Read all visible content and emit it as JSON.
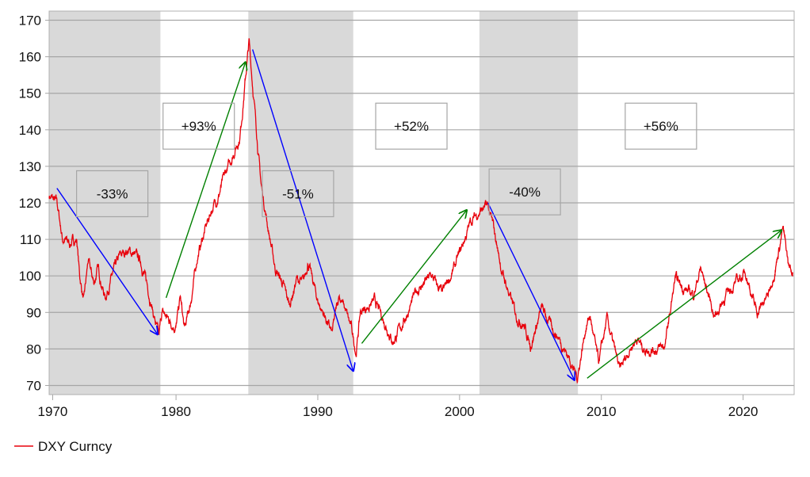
{
  "chart_data": {
    "type": "line",
    "title": "",
    "xlabel": "",
    "ylabel": "",
    "xlim": [
      1971.05,
      2023.6
    ],
    "ylim": [
      67.5,
      172.5
    ],
    "x_ticks": [
      {
        "label": "1970",
        "value": 1971.3
      },
      {
        "label": "1980",
        "value": 1980
      },
      {
        "label": "1990",
        "value": 1990
      },
      {
        "label": "2000",
        "value": 2000
      },
      {
        "label": "2010",
        "value": 2010
      },
      {
        "label": "2020",
        "value": 2020
      }
    ],
    "y_ticks": [
      70,
      80,
      90,
      100,
      110,
      120,
      130,
      140,
      150,
      160,
      170
    ],
    "grid": true,
    "legend": {
      "position": "bottom-left",
      "entries": [
        {
          "label": "DXY Curncy",
          "color": "#e8000b"
        }
      ]
    },
    "shaded_periods": [
      [
        1971.05,
        1978.9
      ],
      [
        1985.1,
        1992.5
      ],
      [
        2001.4,
        2008.35
      ]
    ],
    "series": [
      {
        "name": "DXY Curncy",
        "color": "#e8000b",
        "points": [
          [
            1971.05,
            122
          ],
          [
            1971.3,
            121
          ],
          [
            1971.6,
            120
          ],
          [
            1972,
            110
          ],
          [
            1972.5,
            109
          ],
          [
            1973.0,
            110
          ],
          [
            1973.2,
            100
          ],
          [
            1973.5,
            93
          ],
          [
            1973.8,
            104
          ],
          [
            1974.2,
            98
          ],
          [
            1974.5,
            102
          ],
          [
            1975.0,
            94
          ],
          [
            1975.5,
            100
          ],
          [
            1976,
            105
          ],
          [
            1976.5,
            107
          ],
          [
            1977,
            106
          ],
          [
            1977.5,
            104
          ],
          [
            1978.0,
            97
          ],
          [
            1978.5,
            88
          ],
          [
            1978.8,
            83
          ],
          [
            1979,
            90
          ],
          [
            1979.5,
            88
          ],
          [
            1980,
            86
          ],
          [
            1980.3,
            94
          ],
          [
            1980.6,
            85
          ],
          [
            1981,
            92
          ],
          [
            1981.5,
            105
          ],
          [
            1982,
            112
          ],
          [
            1982.5,
            118
          ],
          [
            1983,
            122
          ],
          [
            1983.5,
            128
          ],
          [
            1984,
            133
          ],
          [
            1984.5,
            138
          ],
          [
            1985.0,
            158
          ],
          [
            1985.15,
            164
          ],
          [
            1985.5,
            148
          ],
          [
            1986,
            125
          ],
          [
            1986.5,
            113
          ],
          [
            1987,
            102
          ],
          [
            1987.5,
            98
          ],
          [
            1988,
            92
          ],
          [
            1988.5,
            99
          ],
          [
            1989,
            98
          ],
          [
            1989.3,
            104
          ],
          [
            1990,
            93
          ],
          [
            1990.5,
            89
          ],
          [
            1991,
            84
          ],
          [
            1991.5,
            95
          ],
          [
            1992,
            90
          ],
          [
            1992.4,
            85
          ],
          [
            1992.7,
            79
          ],
          [
            1993,
            90
          ],
          [
            1994,
            93
          ],
          [
            1994.5,
            89
          ],
          [
            1995,
            85
          ],
          [
            1995.3,
            82
          ],
          [
            1996,
            87
          ],
          [
            1997,
            96
          ],
          [
            1998,
            100
          ],
          [
            1998.8,
            95
          ],
          [
            1999.5,
            101
          ],
          [
            2000,
            106
          ],
          [
            2000.8,
            115
          ],
          [
            2001.5,
            118
          ],
          [
            2002,
            119
          ],
          [
            2002.4,
            113
          ],
          [
            2003,
            101
          ],
          [
            2004,
            89
          ],
          [
            2004.5,
            87
          ],
          [
            2005,
            81
          ],
          [
            2005.8,
            91
          ],
          [
            2006.5,
            86
          ],
          [
            2007,
            83
          ],
          [
            2007.8,
            77
          ],
          [
            2008.3,
            72
          ],
          [
            2008.9,
            86
          ],
          [
            2009.2,
            89
          ],
          [
            2009.8,
            76
          ],
          [
            2010.4,
            88
          ],
          [
            2011.3,
            74
          ],
          [
            2012,
            80
          ],
          [
            2012.5,
            83
          ],
          [
            2013,
            80
          ],
          [
            2014,
            80
          ],
          [
            2014.5,
            81
          ],
          [
            2015.2,
            99
          ],
          [
            2016,
            96
          ],
          [
            2016.5,
            95
          ],
          [
            2017,
            102
          ],
          [
            2018,
            89
          ],
          [
            2019,
            96
          ],
          [
            2020.2,
            101
          ],
          [
            2020.8,
            92
          ],
          [
            2021,
            90
          ],
          [
            2021.8,
            95
          ],
          [
            2022.3,
            103
          ],
          [
            2022.8,
            113
          ],
          [
            2023.2,
            103
          ],
          [
            2023.5,
            101
          ]
        ]
      }
    ],
    "annotations": [
      {
        "label": "-33%",
        "at": [
          1975.5,
          122.5
        ],
        "arrow": {
          "from": [
            1971.6,
            124
          ],
          "to": [
            1978.7,
            84
          ],
          "color": "#0000ff"
        }
      },
      {
        "label": "+93%",
        "at": [
          1981.6,
          141
        ],
        "arrow": {
          "from": [
            1979.3,
            94
          ],
          "to": [
            1984.9,
            158.5
          ],
          "color": "#008000"
        }
      },
      {
        "label": "-51%",
        "at": [
          1988.6,
          122.5
        ],
        "arrow": {
          "from": [
            1985.4,
            162
          ],
          "to": [
            1992.5,
            74
          ],
          "color": "#0000ff"
        }
      },
      {
        "label": "+52%",
        "at": [
          1996.6,
          141
        ],
        "arrow": {
          "from": [
            1993.1,
            81.5
          ],
          "to": [
            2000.5,
            118
          ],
          "color": "#008000"
        }
      },
      {
        "label": "-40%",
        "at": [
          2004.6,
          123
        ],
        "arrow": {
          "from": [
            2002.0,
            120
          ],
          "to": [
            2008.1,
            71.5
          ],
          "color": "#0000ff"
        }
      },
      {
        "label": "+56%",
        "at": [
          2014.2,
          141
        ],
        "arrow": {
          "from": [
            2009.0,
            72
          ],
          "to": [
            2022.7,
            112.5
          ],
          "color": "#008000"
        }
      }
    ]
  }
}
